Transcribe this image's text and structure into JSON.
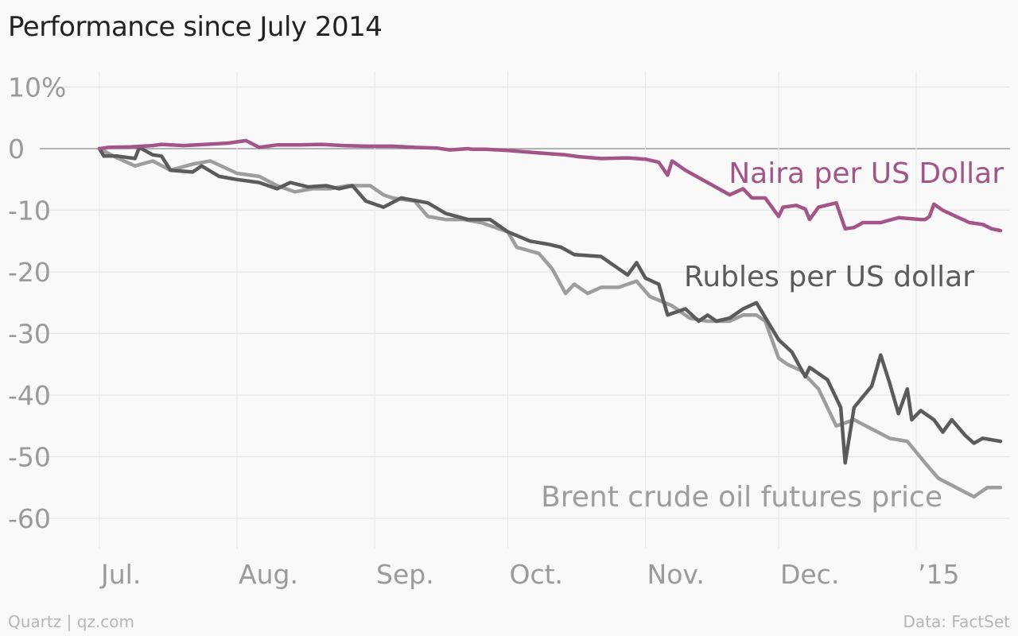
{
  "chart_data": {
    "type": "line",
    "title": "Performance since July 2014",
    "ylim": [
      -65,
      12
    ],
    "yticks": [
      10,
      0,
      -10,
      -20,
      -30,
      -40,
      -50,
      -60
    ],
    "ytick_labels": [
      "10%",
      "0",
      "-10",
      "-20",
      "-30",
      "-40",
      "-50",
      "-60"
    ],
    "xticks": [
      "2014-07-01",
      "2014-08-01",
      "2014-09-01",
      "2014-10-01",
      "2014-11-01",
      "2014-12-01",
      "2015-01-01"
    ],
    "xtick_labels": [
      "Jul.",
      "Aug.",
      "Sep.",
      "Oct.",
      "Nov.",
      "Dec.",
      "’15"
    ],
    "xlim": [
      "2014-06-29",
      "2015-01-22"
    ],
    "grid": true,
    "series": [
      {
        "name": "Naira per US Dollar",
        "color": "#a3558a",
        "points": [
          [
            "2014-07-01",
            0
          ],
          [
            "2014-07-03",
            0.2
          ],
          [
            "2014-07-08",
            0.3
          ],
          [
            "2014-07-13",
            0.5
          ],
          [
            "2014-07-15",
            0.7
          ],
          [
            "2014-07-20",
            0.5
          ],
          [
            "2014-07-25",
            0.7
          ],
          [
            "2014-07-30",
            0.9
          ],
          [
            "2014-08-03",
            1.3
          ],
          [
            "2014-08-06",
            0.2
          ],
          [
            "2014-08-10",
            0.6
          ],
          [
            "2014-08-15",
            0.6
          ],
          [
            "2014-08-20",
            0.7
          ],
          [
            "2014-08-25",
            0.5
          ],
          [
            "2014-08-30",
            0.4
          ],
          [
            "2014-09-05",
            0.4
          ],
          [
            "2014-09-10",
            0.2
          ],
          [
            "2014-09-15",
            0.1
          ],
          [
            "2014-09-18",
            -0.2
          ],
          [
            "2014-09-22",
            0
          ],
          [
            "2014-09-23",
            -0.1
          ],
          [
            "2014-09-26",
            -0.1
          ],
          [
            "2014-10-01",
            -0.3
          ],
          [
            "2014-10-08",
            -0.7
          ],
          [
            "2014-10-14",
            -1.0
          ],
          [
            "2014-10-17",
            -1.3
          ],
          [
            "2014-10-22",
            -1.6
          ],
          [
            "2014-10-28",
            -1.5
          ],
          [
            "2014-11-01",
            -1.7
          ],
          [
            "2014-11-04",
            -2.2
          ],
          [
            "2014-11-06",
            -4.3
          ],
          [
            "2014-11-07",
            -2.0
          ],
          [
            "2014-11-10",
            -3.5
          ],
          [
            "2014-11-15",
            -5.5
          ],
          [
            "2014-11-20",
            -7.5
          ],
          [
            "2014-11-23",
            -6.5
          ],
          [
            "2014-11-25",
            -8.0
          ],
          [
            "2014-11-28",
            -8.0
          ],
          [
            "2014-12-01",
            -11.0
          ],
          [
            "2014-12-02",
            -9.5
          ],
          [
            "2014-12-05",
            -9.2
          ],
          [
            "2014-12-07",
            -9.8
          ],
          [
            "2014-12-08",
            -11.5
          ],
          [
            "2014-12-10",
            -9.5
          ],
          [
            "2014-12-14",
            -8.8
          ],
          [
            "2014-12-16",
            -13.0
          ],
          [
            "2014-12-18",
            -12.8
          ],
          [
            "2014-12-20",
            -12.0
          ],
          [
            "2014-12-24",
            -12.0
          ],
          [
            "2014-12-28",
            -11.2
          ],
          [
            "2015-01-02",
            -11.5
          ],
          [
            "2015-01-03",
            -11.5
          ],
          [
            "2015-01-04",
            -11.0
          ],
          [
            "2015-01-05",
            -9.0
          ],
          [
            "2015-01-07",
            -10.0
          ],
          [
            "2015-01-10",
            -11.0
          ],
          [
            "2015-01-13",
            -12.0
          ],
          [
            "2015-01-16",
            -12.3
          ],
          [
            "2015-01-18",
            -13.0
          ],
          [
            "2015-01-20",
            -13.3
          ]
        ]
      },
      {
        "name": "Rubles per US dollar",
        "color": "#5b5b5b",
        "points": [
          [
            "2014-07-01",
            0
          ],
          [
            "2014-07-02",
            -1.2
          ],
          [
            "2014-07-05",
            -1.2
          ],
          [
            "2014-07-09",
            -1.6
          ],
          [
            "2014-07-10",
            0.2
          ],
          [
            "2014-07-13",
            -1.0
          ],
          [
            "2014-07-15",
            -1.2
          ],
          [
            "2014-07-17",
            -3.5
          ],
          [
            "2014-07-22",
            -3.8
          ],
          [
            "2014-07-24",
            -2.8
          ],
          [
            "2014-07-28",
            -4.5
          ],
          [
            "2014-08-01",
            -5.0
          ],
          [
            "2014-08-06",
            -5.5
          ],
          [
            "2014-08-10",
            -6.5
          ],
          [
            "2014-08-13",
            -5.5
          ],
          [
            "2014-08-17",
            -6.2
          ],
          [
            "2014-08-21",
            -6.0
          ],
          [
            "2014-08-24",
            -6.5
          ],
          [
            "2014-08-27",
            -6.0
          ],
          [
            "2014-08-30",
            -8.5
          ],
          [
            "2014-09-03",
            -9.5
          ],
          [
            "2014-09-07",
            -8.0
          ],
          [
            "2014-09-13",
            -8.8
          ],
          [
            "2014-09-17",
            -10.5
          ],
          [
            "2014-09-22",
            -11.5
          ],
          [
            "2014-09-27",
            -11.5
          ],
          [
            "2014-10-01",
            -13.5
          ],
          [
            "2014-10-06",
            -15.0
          ],
          [
            "2014-10-10",
            -15.5
          ],
          [
            "2014-10-13",
            -16.0
          ],
          [
            "2014-10-16",
            -17.2
          ],
          [
            "2014-10-22",
            -17.5
          ],
          [
            "2014-10-25",
            -19.0
          ],
          [
            "2014-10-28",
            -20.5
          ],
          [
            "2014-10-30",
            -18.5
          ],
          [
            "2014-11-01",
            -21.0
          ],
          [
            "2014-11-04",
            -22.0
          ],
          [
            "2014-11-06",
            -27.0
          ],
          [
            "2014-11-10",
            -26.0
          ],
          [
            "2014-11-13",
            -28.0
          ],
          [
            "2014-11-15",
            -27.0
          ],
          [
            "2014-11-17",
            -28.0
          ],
          [
            "2014-11-20",
            -27.5
          ],
          [
            "2014-11-23",
            -26.0
          ],
          [
            "2014-11-26",
            -25.0
          ],
          [
            "2014-12-01",
            -31.0
          ],
          [
            "2014-12-04",
            -33.0
          ],
          [
            "2014-12-07",
            -37.0
          ],
          [
            "2014-12-08",
            -35.5
          ],
          [
            "2014-12-12",
            -37.5
          ],
          [
            "2014-12-15",
            -42.0
          ],
          [
            "2014-12-16",
            -51.0
          ],
          [
            "2014-12-18",
            -42.0
          ],
          [
            "2014-12-22",
            -38.5
          ],
          [
            "2014-12-24",
            -33.5
          ],
          [
            "2014-12-26",
            -38.0
          ],
          [
            "2014-12-28",
            -43.0
          ],
          [
            "2014-12-30",
            -39.0
          ],
          [
            "2014-12-31",
            -44.0
          ],
          [
            "2015-01-02",
            -42.5
          ],
          [
            "2015-01-05",
            -44.0
          ],
          [
            "2015-01-07",
            -46.0
          ],
          [
            "2015-01-09",
            -44.0
          ],
          [
            "2015-01-12",
            -46.5
          ],
          [
            "2015-01-14",
            -47.8
          ],
          [
            "2015-01-16",
            -47.0
          ],
          [
            "2015-01-20",
            -47.5
          ]
        ]
      },
      {
        "name": "Brent crude oil futures price",
        "color": "#9d9d9d",
        "points": [
          [
            "2014-07-01",
            0
          ],
          [
            "2014-07-05",
            -1.5
          ],
          [
            "2014-07-09",
            -2.8
          ],
          [
            "2014-07-13",
            -2.0
          ],
          [
            "2014-07-17",
            -3.5
          ],
          [
            "2014-07-22",
            -2.5
          ],
          [
            "2014-07-26",
            -2.0
          ],
          [
            "2014-08-01",
            -4.0
          ],
          [
            "2014-08-06",
            -4.5
          ],
          [
            "2014-08-10",
            -6.0
          ],
          [
            "2014-08-14",
            -7.0
          ],
          [
            "2014-08-18",
            -6.5
          ],
          [
            "2014-08-22",
            -6.5
          ],
          [
            "2014-08-26",
            -6.0
          ],
          [
            "2014-08-31",
            -6.0
          ],
          [
            "2014-09-03",
            -7.5
          ],
          [
            "2014-09-05",
            -8.0
          ],
          [
            "2014-09-10",
            -8.5
          ],
          [
            "2014-09-13",
            -11.0
          ],
          [
            "2014-09-17",
            -11.5
          ],
          [
            "2014-09-21",
            -11.5
          ],
          [
            "2014-09-25",
            -12.0
          ],
          [
            "2014-10-01",
            -13.5
          ],
          [
            "2014-10-03",
            -16.0
          ],
          [
            "2014-10-08",
            -17.0
          ],
          [
            "2014-10-11",
            -19.5
          ],
          [
            "2014-10-14",
            -23.5
          ],
          [
            "2014-10-16",
            -22.0
          ],
          [
            "2014-10-19",
            -23.5
          ],
          [
            "2014-10-22",
            -22.5
          ],
          [
            "2014-10-26",
            -22.5
          ],
          [
            "2014-10-30",
            -21.5
          ],
          [
            "2014-11-02",
            -24.0
          ],
          [
            "2014-11-07",
            -25.5
          ],
          [
            "2014-11-11",
            -27.5
          ],
          [
            "2014-11-15",
            -28.0
          ],
          [
            "2014-11-20",
            -28.0
          ],
          [
            "2014-11-23",
            -27.0
          ],
          [
            "2014-11-26",
            -27.0
          ],
          [
            "2014-11-28",
            -28.0
          ],
          [
            "2014-12-01",
            -34.0
          ],
          [
            "2014-12-03",
            -35.0
          ],
          [
            "2014-12-06",
            -36.0
          ],
          [
            "2014-12-10",
            -39.0
          ],
          [
            "2014-12-14",
            -45.0
          ],
          [
            "2014-12-18",
            -44.0
          ],
          [
            "2014-12-22",
            -45.5
          ],
          [
            "2014-12-26",
            -47.0
          ],
          [
            "2014-12-30",
            -47.5
          ],
          [
            "2015-01-03",
            -51.0
          ],
          [
            "2015-01-06",
            -53.5
          ],
          [
            "2015-01-10",
            -55.0
          ],
          [
            "2015-01-14",
            -56.5
          ],
          [
            "2015-01-17",
            -55.0
          ],
          [
            "2015-01-20",
            -55.0
          ]
        ]
      }
    ],
    "annotations": [
      {
        "text": "Naira per US Dollar",
        "series": 0,
        "color": "#a3558a"
      },
      {
        "text": "Rubles per US dollar",
        "series": 1,
        "color": "#5b5b5b"
      },
      {
        "text": "Brent crude oil futures price",
        "series": 2,
        "color": "#9d9d9d"
      }
    ]
  },
  "footer": {
    "source_left": "Quartz | qz.com",
    "source_right": "Data: FactSet"
  }
}
